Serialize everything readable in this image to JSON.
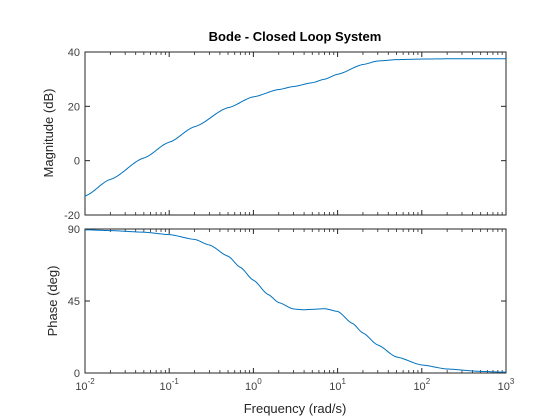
{
  "chart_data": [
    {
      "type": "line",
      "title": "Bode - Closed Loop System",
      "xlabel": "",
      "ylabel": "Magnitude (dB)",
      "xscale": "log",
      "xlim": [
        0.01,
        1000
      ],
      "ylim": [
        -20,
        40
      ],
      "yticks": [
        "-20",
        "0",
        "20",
        "40"
      ],
      "grid": false,
      "series": [
        {
          "color": "#0072BD",
          "x": [
            0.01,
            0.02,
            0.05,
            0.1,
            0.2,
            0.5,
            1,
            2,
            3,
            5,
            7,
            10,
            20,
            30,
            50,
            100,
            200,
            500,
            1000
          ],
          "y": [
            -13,
            -6.9,
            1.0,
            6.8,
            12.5,
            19.5,
            23.5,
            26.2,
            27.3,
            28.7,
            30.0,
            31.8,
            35.4,
            36.7,
            37.2,
            37.4,
            37.5,
            37.5,
            37.5
          ]
        }
      ]
    },
    {
      "type": "line",
      "title": "",
      "xlabel": "Frequency  (rad/s)",
      "ylabel": "Phase (deg)",
      "xscale": "log",
      "xlim": [
        0.01,
        1000
      ],
      "ylim": [
        0,
        90
      ],
      "yticks": [
        "0",
        "45",
        "90"
      ],
      "xticks": [
        {
          "base": "10",
          "exp": "-2"
        },
        {
          "base": "10",
          "exp": "-1"
        },
        {
          "base": "10",
          "exp": "0"
        },
        {
          "base": "10",
          "exp": "1"
        },
        {
          "base": "10",
          "exp": "2"
        },
        {
          "base": "10",
          "exp": "3"
        }
      ],
      "grid": false,
      "series": [
        {
          "color": "#0072BD",
          "x": [
            0.01,
            0.02,
            0.05,
            0.1,
            0.2,
            0.3,
            0.5,
            0.7,
            1,
            1.5,
            2,
            3,
            4,
            5,
            7,
            10,
            15,
            20,
            30,
            50,
            100,
            200,
            500,
            1000
          ],
          "y": [
            89.5,
            89.0,
            88.0,
            86.5,
            83.5,
            80.0,
            73.0,
            66.0,
            58.0,
            49.0,
            44.0,
            40.0,
            39.5,
            39.8,
            40.2,
            38.5,
            31.0,
            25.0,
            17.5,
            10.0,
            5.0,
            2.5,
            1.0,
            0.5
          ]
        }
      ]
    }
  ]
}
